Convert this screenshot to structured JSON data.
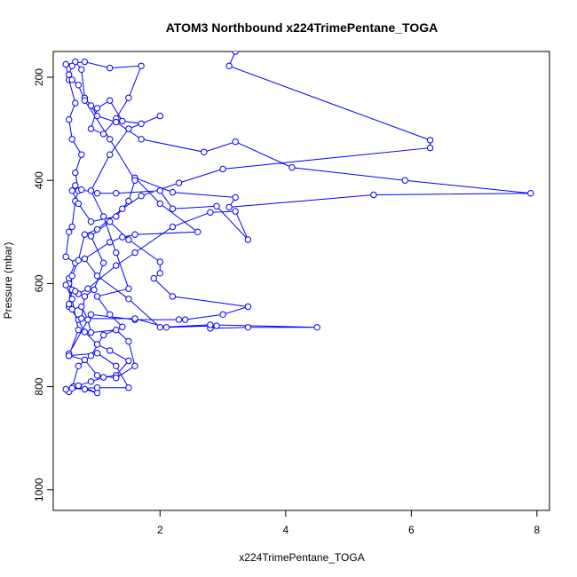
{
  "chart_data": {
    "type": "line",
    "title": "ATOM3 Northbound x224TrimePentane_TOGA",
    "xlabel": "x224TrimePentane_TOGA",
    "ylabel": "Pressure (mbar)",
    "xlim": [
      0.3,
      8.2
    ],
    "ylim": [
      1040,
      150
    ],
    "x_ticks": [
      2,
      4,
      6,
      8
    ],
    "x_tick_labels": [
      "2",
      "4",
      "6",
      "8"
    ],
    "y_ticks": [
      200,
      400,
      600,
      800,
      1000
    ],
    "y_tick_labels": [
      "200",
      "400",
      "600",
      "800",
      "1000"
    ],
    "grid": false,
    "legend": "none",
    "series": [
      {
        "color": "#0000ff",
        "marker": "open-circle",
        "points": [
          [
            0.55,
            810
          ],
          [
            0.62,
            800
          ],
          [
            0.8,
            805
          ],
          [
            1.0,
            812
          ],
          [
            0.7,
            798
          ],
          [
            0.9,
            790
          ],
          [
            1.1,
            782
          ],
          [
            1.3,
            778
          ],
          [
            1.5,
            750
          ],
          [
            1.2,
            730
          ],
          [
            1.0,
            718
          ],
          [
            0.8,
            694
          ],
          [
            0.7,
            670
          ],
          [
            0.55,
            645
          ],
          [
            0.6,
            612
          ],
          [
            0.55,
            590
          ],
          [
            0.65,
            560
          ],
          [
            0.5,
            548
          ],
          [
            0.55,
            500
          ],
          [
            0.6,
            490
          ],
          [
            0.65,
            440
          ],
          [
            0.7,
            420
          ],
          [
            0.65,
            385
          ],
          [
            0.75,
            350
          ],
          [
            0.6,
            320
          ],
          [
            0.55,
            282
          ],
          [
            0.65,
            250
          ],
          [
            0.55,
            205
          ],
          [
            0.5,
            175
          ],
          [
            0.8,
            170
          ],
          [
            1.2,
            182
          ],
          [
            1.7,
            178
          ],
          [
            1.5,
            240
          ],
          [
            1.3,
            280
          ],
          [
            1.1,
            310
          ],
          [
            0.9,
            300
          ],
          [
            1.0,
            260
          ],
          [
            1.2,
            245
          ],
          [
            1.4,
            285
          ],
          [
            1.7,
            290
          ],
          [
            2.0,
            275
          ],
          [
            1.5,
            300
          ],
          [
            1.2,
            350
          ],
          [
            0.9,
            420
          ],
          [
            1.1,
            470
          ],
          [
            1.3,
            540
          ],
          [
            1.5,
            610
          ],
          [
            1.0,
            625
          ],
          [
            1.2,
            660
          ],
          [
            1.4,
            684
          ],
          [
            1.1,
            700
          ],
          [
            0.9,
            740
          ],
          [
            0.7,
            760
          ],
          [
            0.6,
            803
          ],
          [
            0.5,
            805
          ],
          [
            1.0,
            802
          ],
          [
            1.5,
            802
          ],
          [
            1.3,
            760
          ],
          [
            1.0,
            735
          ],
          [
            0.55,
            740
          ],
          [
            0.55,
            736
          ],
          [
            0.9,
            660
          ],
          [
            1.6,
            670
          ],
          [
            2.3,
            670
          ],
          [
            2.4,
            670
          ],
          [
            3.0,
            660
          ],
          [
            3.4,
            645
          ],
          [
            2.2,
            625
          ],
          [
            1.9,
            590
          ],
          [
            2.0,
            580
          ],
          [
            2.0,
            558
          ],
          [
            1.5,
            515
          ],
          [
            1.2,
            480
          ],
          [
            0.9,
            508
          ],
          [
            1.1,
            560
          ],
          [
            0.95,
            612
          ],
          [
            0.8,
            625
          ],
          [
            0.75,
            668
          ],
          [
            1.6,
            668
          ],
          [
            2.1,
            685
          ],
          [
            2.9,
            682
          ],
          [
            2.8,
            687
          ],
          [
            3.4,
            685
          ],
          [
            4.5,
            685
          ],
          [
            2.8,
            680
          ],
          [
            2.0,
            685
          ],
          [
            1.5,
            630
          ],
          [
            1.0,
            585
          ],
          [
            0.8,
            552
          ],
          [
            1.2,
            520
          ],
          [
            1.4,
            510
          ],
          [
            1.6,
            505
          ],
          [
            2.6,
            500
          ],
          [
            2.0,
            445
          ],
          [
            1.6,
            395
          ],
          [
            2.2,
            423
          ],
          [
            3.2,
            433
          ],
          [
            3.1,
            452
          ],
          [
            5.4,
            428
          ],
          [
            7.9,
            425
          ],
          [
            5.9,
            400
          ],
          [
            4.1,
            375
          ],
          [
            3.2,
            325
          ],
          [
            2.7,
            345
          ],
          [
            1.7,
            320
          ],
          [
            1.3,
            287
          ],
          [
            1.0,
            275
          ],
          [
            0.9,
            255
          ],
          [
            0.8,
            240
          ],
          [
            0.75,
            185
          ],
          [
            0.65,
            170
          ],
          [
            0.6,
            178
          ],
          [
            0.55,
            195
          ],
          [
            0.6,
            205
          ],
          [
            0.7,
            215
          ],
          [
            0.8,
            245
          ],
          [
            1.2,
            320
          ],
          [
            1.6,
            400
          ],
          [
            1.5,
            440
          ],
          [
            1.3,
            470
          ],
          [
            0.9,
            480
          ],
          [
            0.7,
            445
          ],
          [
            0.6,
            420
          ],
          [
            0.65,
            410
          ],
          [
            0.75,
            418
          ],
          [
            1.0,
            425
          ],
          [
            1.3,
            425
          ],
          [
            2.0,
            420
          ],
          [
            2.2,
            455
          ],
          [
            2.9,
            450
          ],
          [
            3.4,
            515
          ],
          [
            3.2,
            460
          ],
          [
            2.8,
            462
          ],
          [
            2.2,
            490
          ],
          [
            1.6,
            540
          ],
          [
            1.3,
            565
          ],
          [
            0.85,
            610
          ],
          [
            0.7,
            620
          ],
          [
            0.65,
            615
          ],
          [
            0.55,
            600
          ],
          [
            0.5,
            603
          ],
          [
            0.6,
            630
          ],
          [
            0.7,
            690
          ],
          [
            0.55,
            740
          ],
          [
            0.8,
            748
          ],
          [
            1.0,
            778
          ],
          [
            1.3,
            783
          ],
          [
            1.6,
            760
          ],
          [
            1.5,
            712
          ],
          [
            1.3,
            690
          ],
          [
            0.9,
            695
          ],
          [
            0.85,
            670
          ],
          [
            0.75,
            645
          ],
          [
            0.6,
            650
          ],
          [
            0.55,
            640
          ],
          [
            0.6,
            585
          ],
          [
            0.7,
            555
          ],
          [
            0.8,
            505
          ],
          [
            1.0,
            495
          ],
          [
            1.4,
            455
          ],
          [
            1.7,
            430
          ],
          [
            2.3,
            405
          ],
          [
            3.0,
            378
          ],
          [
            6.3,
            337
          ],
          [
            6.3,
            322
          ],
          [
            3.1,
            178
          ],
          [
            3.2,
            150
          ]
        ]
      }
    ]
  }
}
